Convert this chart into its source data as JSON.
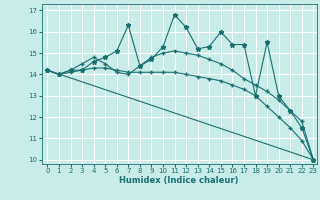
{
  "title": "",
  "xlabel": "Humidex (Indice chaleur)",
  "ylabel": "",
  "bg_color": "#c8ece8",
  "grid_color": "#ffffff",
  "line_color": "#1a7070",
  "xlim": [
    -0.5,
    23.3
  ],
  "ylim": [
    9.8,
    17.3
  ],
  "xticks": [
    0,
    1,
    2,
    3,
    4,
    5,
    6,
    7,
    8,
    9,
    10,
    11,
    12,
    13,
    14,
    15,
    16,
    17,
    18,
    19,
    20,
    21,
    22,
    23
  ],
  "yticks": [
    10,
    11,
    12,
    13,
    14,
    15,
    16,
    17
  ],
  "series": [
    {
      "x": [
        0,
        1,
        2,
        3,
        4,
        5,
        6,
        7,
        8,
        9,
        10,
        11,
        12,
        13,
        14,
        15,
        16,
        17,
        18,
        19,
        20,
        21,
        22,
        23
      ],
      "y": [
        14.2,
        14.0,
        14.2,
        14.2,
        14.6,
        14.8,
        15.1,
        16.3,
        14.4,
        14.7,
        15.3,
        16.8,
        16.2,
        15.2,
        15.3,
        16.0,
        15.4,
        15.4,
        13.0,
        15.5,
        13.0,
        12.3,
        11.5,
        10.0
      ],
      "marker": "*",
      "ms": 3.5
    },
    {
      "x": [
        0,
        1,
        2,
        3,
        4,
        5,
        6,
        7,
        8,
        9,
        10,
        11,
        12,
        13,
        14,
        15,
        16,
        17,
        18,
        19,
        20,
        21,
        22,
        23
      ],
      "y": [
        14.2,
        14.0,
        14.2,
        14.5,
        14.8,
        14.5,
        14.1,
        14.0,
        14.4,
        14.8,
        15.0,
        15.1,
        15.0,
        14.9,
        14.7,
        14.5,
        14.2,
        13.8,
        13.5,
        13.2,
        12.8,
        12.3,
        11.8,
        10.0
      ],
      "marker": "+",
      "ms": 3.5
    },
    {
      "x": [
        0,
        1,
        2,
        3,
        4,
        5,
        6,
        7,
        8,
        9,
        10,
        11,
        12,
        13,
        14,
        15,
        16,
        17,
        18,
        19,
        20,
        21,
        22,
        23
      ],
      "y": [
        14.2,
        14.0,
        14.1,
        14.2,
        14.3,
        14.3,
        14.2,
        14.1,
        14.1,
        14.1,
        14.1,
        14.1,
        14.0,
        13.9,
        13.8,
        13.7,
        13.5,
        13.3,
        13.0,
        12.5,
        12.0,
        11.5,
        10.9,
        10.0
      ],
      "marker": "+",
      "ms": 2.5
    },
    {
      "x": [
        0,
        23
      ],
      "y": [
        14.2,
        10.0
      ],
      "marker": null,
      "ms": 0
    }
  ]
}
